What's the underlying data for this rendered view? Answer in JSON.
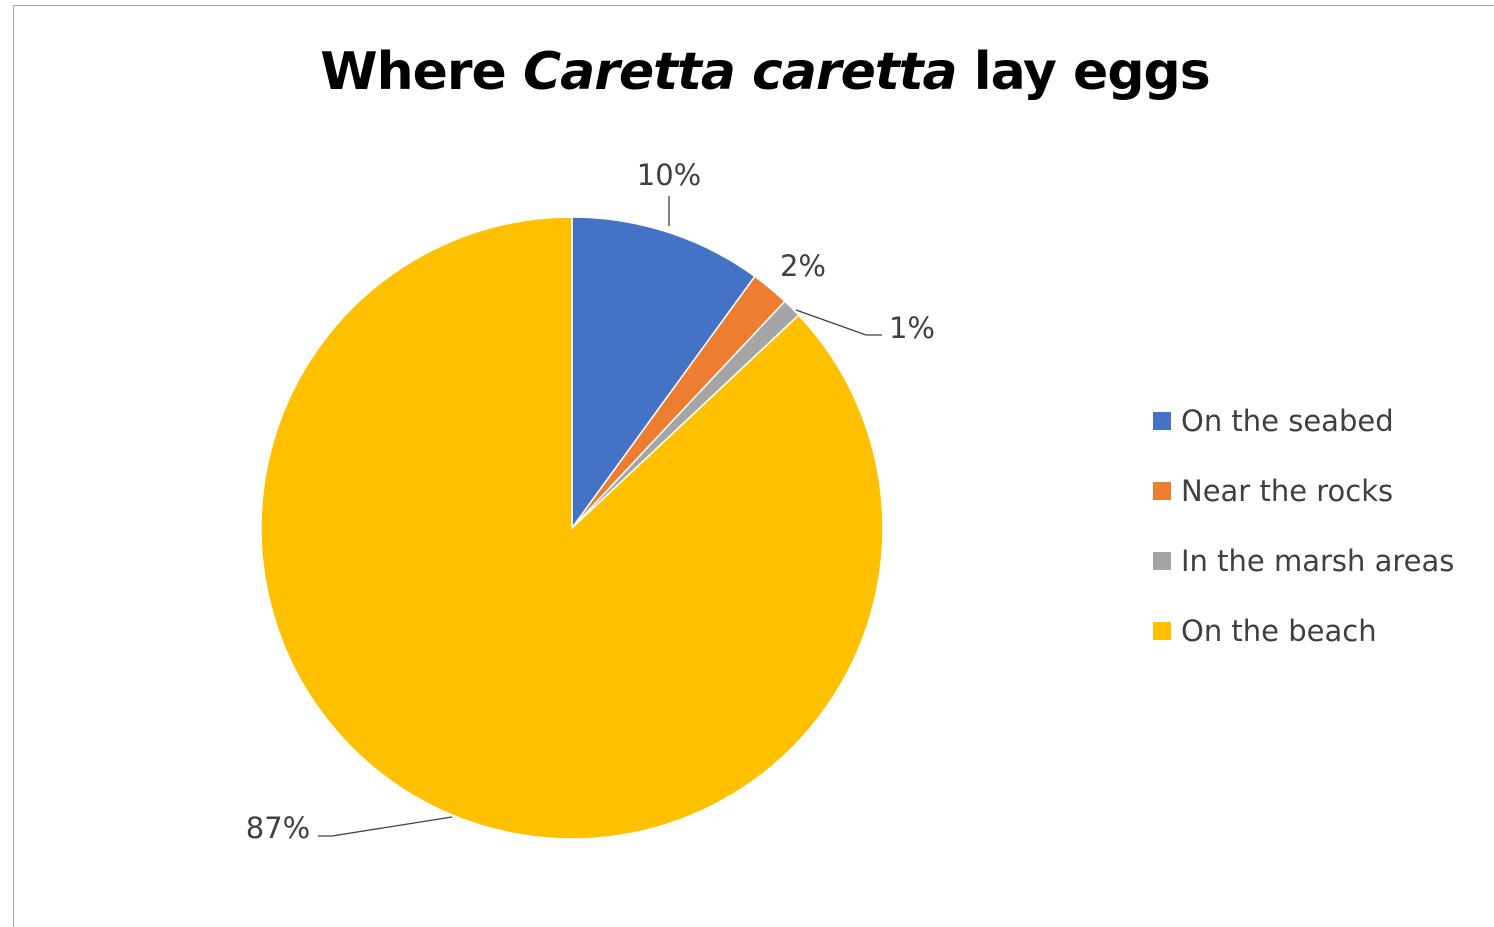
{
  "chart_data": {
    "type": "pie",
    "title": {
      "prefix": "Where ",
      "italic": "Caretta caretta",
      "suffix": " lay eggs"
    },
    "categories": [
      "On the seabed",
      "Near the rocks",
      "In the marsh areas",
      "On the beach"
    ],
    "values": [
      10,
      2,
      1,
      87
    ],
    "data_labels": [
      "10%",
      "2%",
      "1%",
      "87%"
    ],
    "colors": [
      "#4472c4",
      "#ed7d31",
      "#a5a5a5",
      "#ffc000"
    ],
    "legend_position": "right",
    "start_angle": "12 o'clock, clockwise"
  }
}
